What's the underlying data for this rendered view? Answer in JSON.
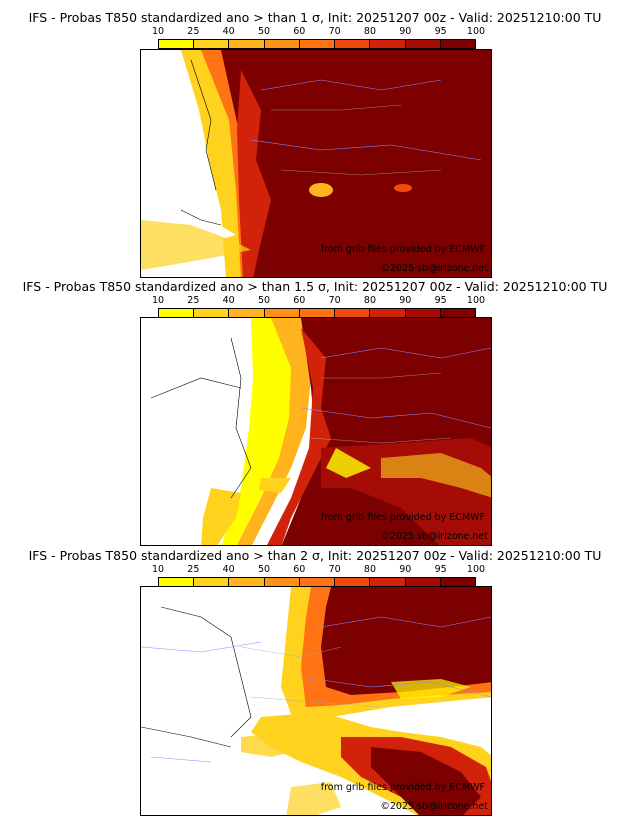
{
  "colorbar": {
    "labels": [
      "10",
      "25",
      "40",
      "50",
      "60",
      "70",
      "80",
      "90",
      "95",
      "100"
    ],
    "colors": [
      "#ffff00",
      "#ffd21e",
      "#ffb41e",
      "#ff9119",
      "#ff7314",
      "#f04b0f",
      "#d2230a",
      "#a50c05",
      "#7d0000"
    ]
  },
  "panels": [
    {
      "title": "IFS - Probas T850  standardized ano > than 1 σ, Init: 20251207 00z - Valid: 20251210:00 TU",
      "credit_source": "from grib files provided by ECMWF",
      "credit_copyright": "©2025 sb@irizone.net"
    },
    {
      "title": "IFS - Probas T850  standardized ano > than 1.5 σ, Init: 20251207 00z - Valid: 20251210:00 TU",
      "credit_source": "from grib files provided by ECMWF",
      "credit_copyright": "©2025 sb@irizone.net"
    },
    {
      "title": "IFS - Probas T850  standardized ano > than 2 σ, Init: 20251207 00z - Valid: 20251210:00 TU",
      "credit_source": "from grib files provided by ECMWF",
      "credit_copyright": "©2025 sb@irizone.net"
    }
  ]
}
